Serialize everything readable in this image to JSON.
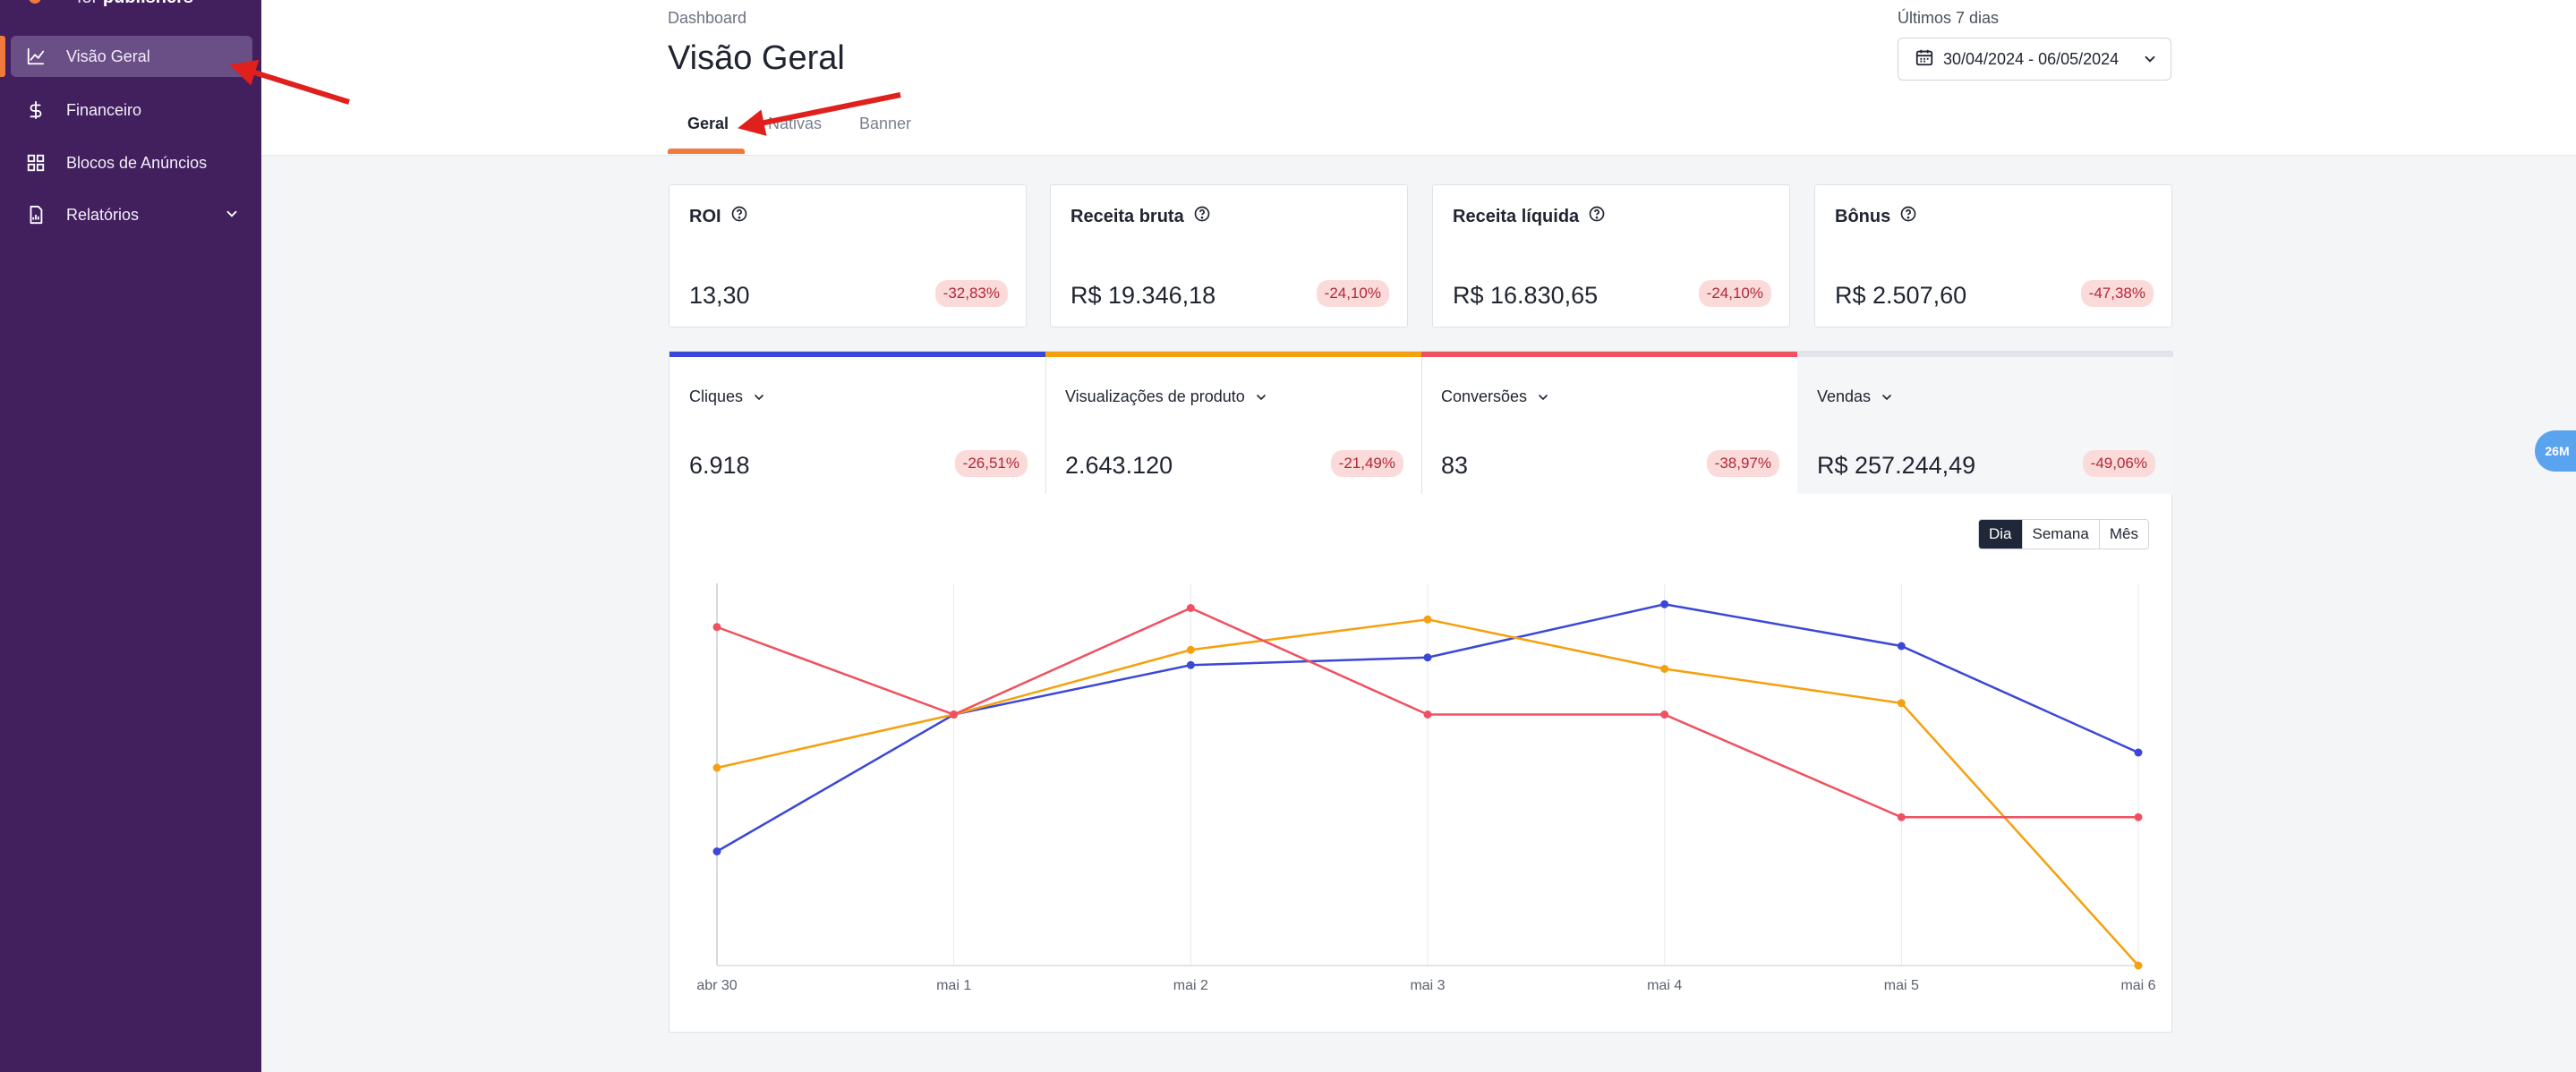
{
  "brand": {
    "prefix": "for",
    "name": "publishers"
  },
  "sidebar": {
    "items": [
      {
        "label": "Visão Geral",
        "icon": "trend-chart-icon",
        "active": true
      },
      {
        "label": "Financeiro",
        "icon": "dollar-icon"
      },
      {
        "label": "Blocos de Anúncios",
        "icon": "grid-icon"
      },
      {
        "label": "Relatórios",
        "icon": "report-icon",
        "expandable": true
      }
    ]
  },
  "header": {
    "breadcrumb": "Dashboard",
    "title": "Visão Geral",
    "tabs": [
      {
        "label": "Geral",
        "active": true
      },
      {
        "label": "Nativas"
      },
      {
        "label": "Banner"
      }
    ],
    "range_label": "Últimos 7 dias",
    "date_range": "30/04/2024 - 06/05/2024"
  },
  "kpis": [
    {
      "label": "ROI",
      "value": "13,30",
      "change": "-32,83%"
    },
    {
      "label": "Receita bruta",
      "value": "R$ 19.346,18",
      "change": "-24,10%"
    },
    {
      "label": "Receita líquida",
      "value": "R$ 16.830,65",
      "change": "-24,10%"
    },
    {
      "label": "Bônus",
      "value": "R$ 2.507,60",
      "change": "-47,38%"
    }
  ],
  "metrics": [
    {
      "label": "Cliques",
      "value": "6.918",
      "change": "-26,51%",
      "color": "#3b47d6"
    },
    {
      "label": "Visualizações de produto",
      "value": "2.643.120",
      "change": "-21,49%",
      "color": "#f5a00f"
    },
    {
      "label": "Conversões",
      "value": "83",
      "change": "-38,97%",
      "color": "#ef5160"
    },
    {
      "label": "Vendas",
      "value": "R$ 257.244,49",
      "change": "-49,06%",
      "color": "#e1e4ea",
      "selected": true
    }
  ],
  "period_buttons": [
    {
      "label": "Dia",
      "active": true
    },
    {
      "label": "Semana"
    },
    {
      "label": "Mês"
    }
  ],
  "float_chip": "26M",
  "chart_data": {
    "type": "line",
    "categories": [
      "abr 30",
      "mai 1",
      "mai 2",
      "mai 3",
      "mai 4",
      "mai 5",
      "mai 6"
    ],
    "ylim": [
      0,
      1
    ],
    "grid": true,
    "series": [
      {
        "color": "#3b47d6",
        "values": [
          0.3,
          0.66,
          0.79,
          0.81,
          0.95,
          0.84,
          0.56
        ]
      },
      {
        "color": "#f5a00f",
        "values": [
          0.52,
          0.66,
          0.83,
          0.91,
          0.78,
          0.69,
          0.0
        ]
      },
      {
        "color": "#ef5160",
        "values": [
          0.89,
          0.66,
          0.94,
          0.66,
          0.66,
          0.39,
          0.39
        ]
      }
    ]
  }
}
